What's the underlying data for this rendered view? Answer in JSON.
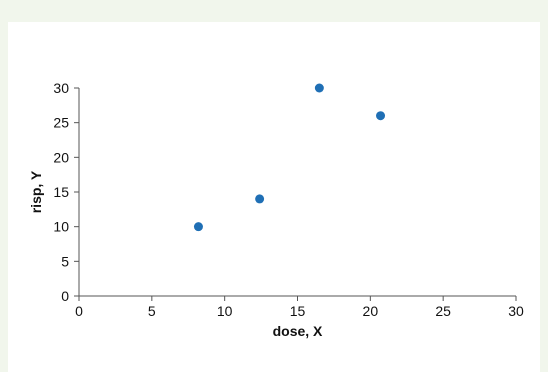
{
  "chart_data": {
    "type": "scatter",
    "title": "",
    "xlabel": "dose, X",
    "ylabel": "risp, Y",
    "xlim": [
      0,
      30
    ],
    "ylim": [
      0,
      30
    ],
    "xticks": [
      0,
      5,
      10,
      15,
      20,
      25,
      30
    ],
    "yticks": [
      0,
      5,
      10,
      15,
      20,
      25,
      30
    ],
    "grid": false,
    "legend": "none",
    "series": [
      {
        "color": "#1f6fb5",
        "points": [
          {
            "x": 8.2,
            "y": 10
          },
          {
            "x": 12.4,
            "y": 14
          },
          {
            "x": 16.5,
            "y": 30
          },
          {
            "x": 20.7,
            "y": 26
          }
        ]
      }
    ]
  }
}
